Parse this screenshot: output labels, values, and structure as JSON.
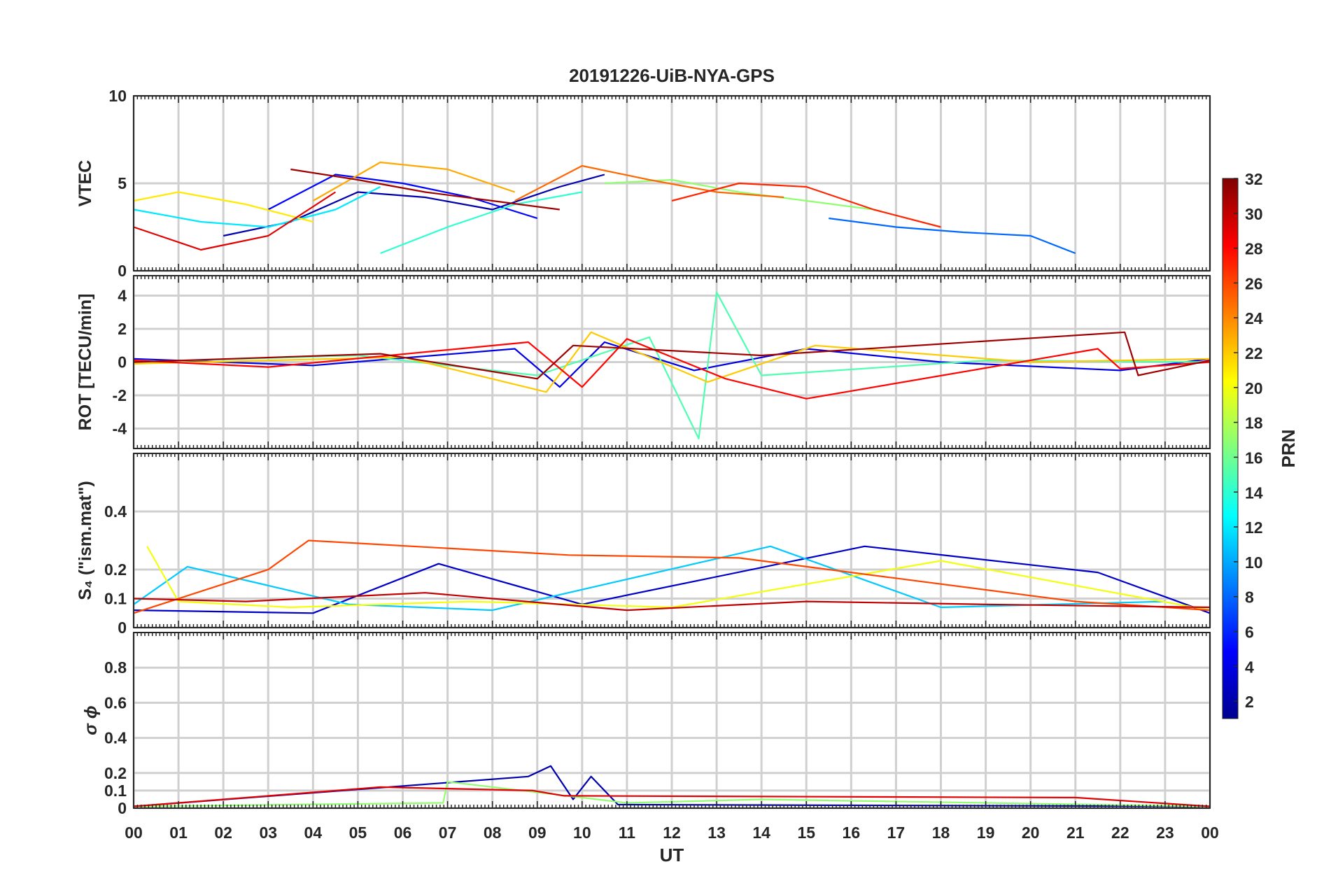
{
  "chart_data": {
    "type": "line",
    "title": "20191226-UiB-NYA-GPS",
    "xlabel": "UT",
    "x_ticks": [
      "00",
      "01",
      "02",
      "03",
      "04",
      "05",
      "06",
      "07",
      "08",
      "09",
      "10",
      "11",
      "12",
      "13",
      "14",
      "15",
      "16",
      "17",
      "18",
      "19",
      "20",
      "21",
      "22",
      "23",
      "00"
    ],
    "xlim": [
      0,
      24
    ],
    "grid": true,
    "colorbar": {
      "label": "PRN",
      "colormap": "jet",
      "range": [
        1,
        32
      ],
      "ticks": [
        2,
        4,
        6,
        8,
        10,
        12,
        14,
        16,
        18,
        20,
        22,
        24,
        26,
        28,
        30,
        32
      ],
      "colors": [
        "#00008f",
        "#0000ff",
        "#00ffff",
        "#ffff00",
        "#ff0000",
        "#800000"
      ]
    },
    "panels": [
      {
        "id": "vtec",
        "ylabel": "VTEC",
        "ylim": [
          0,
          10
        ],
        "y_ticks": [
          0,
          5,
          10
        ],
        "series": [
          {
            "prn": 2,
            "x": [
              2.0,
              3.5,
              5.0,
              6.5,
              8.0,
              9.5,
              10.5
            ],
            "y": [
              2.0,
              2.8,
              4.5,
              4.2,
              3.5,
              4.8,
              5.5
            ]
          },
          {
            "prn": 5,
            "x": [
              3.0,
              4.5,
              6.0,
              7.5,
              9.0
            ],
            "y": [
              3.5,
              5.5,
              5.0,
              4.2,
              3.0
            ]
          },
          {
            "prn": 8,
            "x": [
              15.5,
              17.0,
              18.5,
              20.0,
              21.0
            ],
            "y": [
              3.0,
              2.5,
              2.2,
              2.0,
              1.0
            ]
          },
          {
            "prn": 12,
            "x": [
              0.0,
              1.5,
              3.0,
              4.5,
              5.5
            ],
            "y": [
              3.5,
              2.8,
              2.5,
              3.5,
              4.8
            ]
          },
          {
            "prn": 14,
            "x": [
              5.5,
              7.0,
              8.5,
              10.0
            ],
            "y": [
              1.0,
              2.5,
              3.8,
              4.5
            ]
          },
          {
            "prn": 17,
            "x": [
              10.5,
              12.0,
              13.5,
              15.0,
              16.5
            ],
            "y": [
              5.0,
              5.2,
              4.5,
              4.0,
              3.5
            ]
          },
          {
            "prn": 21,
            "x": [
              0.0,
              1.0,
              2.5,
              4.0
            ],
            "y": [
              4.0,
              4.5,
              3.8,
              2.8
            ]
          },
          {
            "prn": 23,
            "x": [
              4.0,
              5.5,
              7.0,
              8.5
            ],
            "y": [
              4.0,
              6.2,
              5.8,
              4.5
            ]
          },
          {
            "prn": 25,
            "x": [
              8.5,
              10.0,
              11.5,
              13.0,
              14.5
            ],
            "y": [
              4.0,
              6.0,
              5.2,
              4.5,
              4.2
            ]
          },
          {
            "prn": 27,
            "x": [
              12.0,
              13.5,
              15.0,
              16.5,
              18.0
            ],
            "y": [
              4.0,
              5.0,
              4.8,
              3.5,
              2.5
            ]
          },
          {
            "prn": 29,
            "x": [
              0.0,
              1.5,
              3.0,
              4.5
            ],
            "y": [
              2.5,
              1.2,
              2.0,
              4.5
            ]
          },
          {
            "prn": 31,
            "x": [
              3.5,
              5.0,
              6.5,
              8.0,
              9.5
            ],
            "y": [
              5.8,
              5.2,
              4.5,
              4.0,
              3.5
            ]
          }
        ]
      },
      {
        "id": "rot",
        "ylabel": "ROT [TECU/min]",
        "ylim": [
          -5.2,
          5.2
        ],
        "y_ticks": [
          -4,
          -2,
          0,
          2,
          4
        ],
        "series": [
          {
            "prn": 4,
            "x": [
              0.0,
              4.0,
              8.5,
              9.5,
              10.5,
              12.5,
              15.0,
              18.0,
              22.0,
              24.0
            ],
            "y": [
              0.2,
              -0.2,
              0.8,
              -1.5,
              1.2,
              -0.5,
              0.8,
              0.0,
              -0.5,
              0.2
            ]
          },
          {
            "prn": 15,
            "x": [
              0.0,
              5.0,
              9.0,
              11.5,
              12.6,
              13.0,
              14.0,
              19.0,
              24.0
            ],
            "y": [
              0.0,
              0.4,
              -0.8,
              1.5,
              -4.6,
              4.2,
              -0.8,
              0.1,
              0.0
            ]
          },
          {
            "prn": 22,
            "x": [
              0.0,
              6.0,
              9.2,
              10.2,
              12.8,
              15.2,
              20.0,
              24.0
            ],
            "y": [
              -0.1,
              0.3,
              -1.8,
              1.8,
              -1.2,
              1.0,
              0.0,
              0.2
            ]
          },
          {
            "prn": 28,
            "x": [
              0.0,
              3.0,
              8.8,
              10.0,
              11.0,
              13.2,
              15.0,
              21.5,
              22.0,
              24.0
            ],
            "y": [
              0.1,
              -0.3,
              1.2,
              -1.5,
              1.4,
              -1.0,
              -2.2,
              0.8,
              -0.4,
              0.0
            ]
          },
          {
            "prn": 31,
            "x": [
              0.0,
              5.5,
              9.0,
              9.8,
              14.0,
              22.1,
              22.4,
              24.0
            ],
            "y": [
              0.0,
              0.5,
              -1.0,
              1.0,
              0.4,
              1.8,
              -0.8,
              0.1
            ]
          }
        ]
      },
      {
        "id": "s4",
        "ylabel": "S₄ (\"ism.mat\")",
        "ylim": [
          0,
          0.6
        ],
        "y_ticks": [
          0,
          0.1,
          0.2,
          0.4
        ],
        "series": [
          {
            "prn": 3,
            "x": [
              0.0,
              4.0,
              6.8,
              10.0,
              16.3,
              21.5,
              24.0
            ],
            "y": [
              0.06,
              0.05,
              0.22,
              0.08,
              0.28,
              0.19,
              0.05
            ]
          },
          {
            "prn": 11,
            "x": [
              0.0,
              1.2,
              4.8,
              8.0,
              14.2,
              18.0,
              23.0
            ],
            "y": [
              0.08,
              0.21,
              0.08,
              0.06,
              0.28,
              0.07,
              0.09
            ]
          },
          {
            "prn": 20,
            "x": [
              0.3,
              1.0,
              3.5,
              7.5,
              12.0,
              18.0,
              24.0
            ],
            "y": [
              0.28,
              0.09,
              0.07,
              0.09,
              0.07,
              0.23,
              0.06
            ]
          },
          {
            "prn": 26,
            "x": [
              0.0,
              3.0,
              3.9,
              9.7,
              13.5,
              21.0,
              24.0
            ],
            "y": [
              0.05,
              0.2,
              0.3,
              0.25,
              0.24,
              0.09,
              0.06
            ]
          },
          {
            "prn": 30,
            "x": [
              0.0,
              2.5,
              6.5,
              11.0,
              15.0,
              19.0,
              24.0
            ],
            "y": [
              0.1,
              0.09,
              0.12,
              0.06,
              0.09,
              0.08,
              0.07
            ]
          }
        ]
      },
      {
        "id": "sigma",
        "ylabel": "σ ϕ",
        "ylim": [
          0,
          1.0
        ],
        "y_ticks": [
          0,
          0.1,
          0.2,
          0.4,
          0.6,
          0.8
        ],
        "series": [
          {
            "prn": 2,
            "x": [
              0.0,
              8.8,
              9.3,
              9.8,
              10.2,
              10.8,
              24.0
            ],
            "y": [
              0.01,
              0.18,
              0.24,
              0.05,
              0.18,
              0.02,
              0.01
            ]
          },
          {
            "prn": 17,
            "x": [
              0.0,
              6.9,
              7.0,
              11.0,
              14.0,
              24.0
            ],
            "y": [
              0.01,
              0.03,
              0.15,
              0.03,
              0.05,
              0.01
            ]
          },
          {
            "prn": 29,
            "x": [
              0.0,
              5.5,
              8.9,
              9.6,
              21.0,
              24.0
            ],
            "y": [
              0.01,
              0.12,
              0.1,
              0.07,
              0.06,
              0.01
            ]
          }
        ]
      }
    ]
  }
}
